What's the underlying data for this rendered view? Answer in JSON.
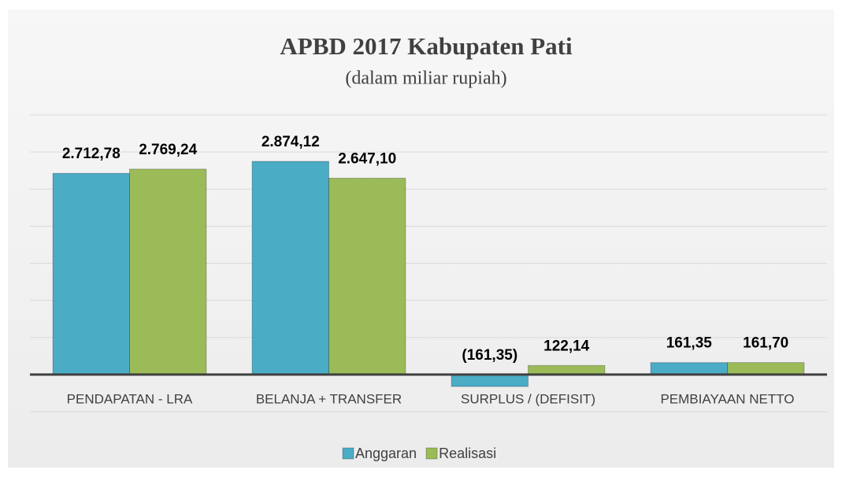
{
  "chart_data": {
    "type": "bar",
    "title": "APBD 2017 Kabupaten Pati",
    "subtitle": "(dalam miliar rupiah)",
    "categories": [
      "PENDAPATAN - LRA",
      "BELANJA + TRANSFER",
      "SURPLUS / (DEFISIT)",
      "PEMBIAYAAN NETTO"
    ],
    "series": [
      {
        "name": "Anggaran",
        "color": "#4bacc6",
        "values": [
          2712.78,
          2874.12,
          -161.35,
          161.35
        ],
        "value_labels": [
          "2.712,78",
          "2.874,12",
          "(161,35)",
          "161,35"
        ]
      },
      {
        "name": "Realisasi",
        "color": "#9bbb59",
        "values": [
          2769.24,
          2647.1,
          122.14,
          161.7
        ],
        "value_labels": [
          "2.769,24",
          "2.647,10",
          "122,14",
          "161,70"
        ]
      }
    ],
    "ylim": [
      -500,
      3500
    ],
    "yticks": [
      -500,
      0,
      500,
      1000,
      1500,
      2000,
      2500,
      3000,
      3500
    ],
    "grid": true,
    "legend": "bottom"
  }
}
